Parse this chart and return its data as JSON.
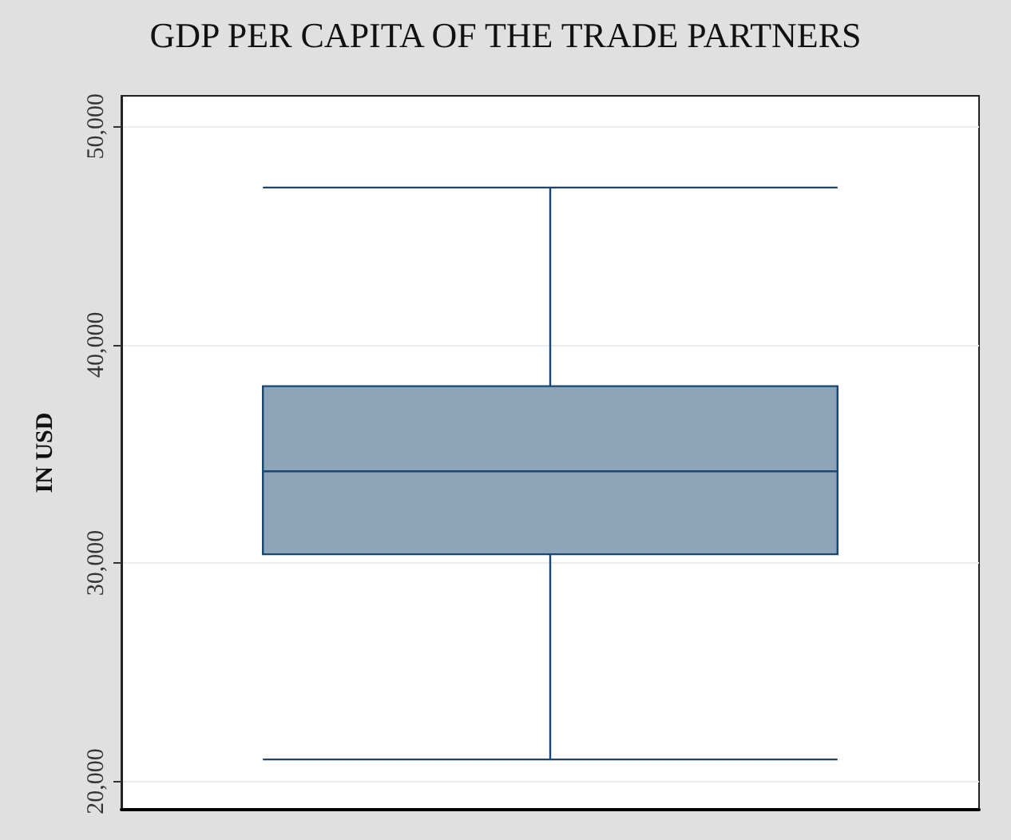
{
  "chart_data": {
    "type": "box",
    "title": "GDP PER CAPITA OF THE TRADE PARTNERS",
    "ylabel": "IN USD",
    "categories": [
      null
    ],
    "boxes": [
      {
        "low": 21000,
        "q1": 30400,
        "median": 34200,
        "q3": 38100,
        "high": 47200
      }
    ],
    "color": "#8ea4b9",
    "ylim": [
      18700,
      51400
    ],
    "yticks": [
      {
        "value": 20000,
        "label": "20,000"
      },
      {
        "value": 30000,
        "label": "30,000"
      },
      {
        "value": 40000,
        "label": "40,000"
      },
      {
        "value": 50000,
        "label": "50,000"
      }
    ],
    "grid": "y"
  }
}
